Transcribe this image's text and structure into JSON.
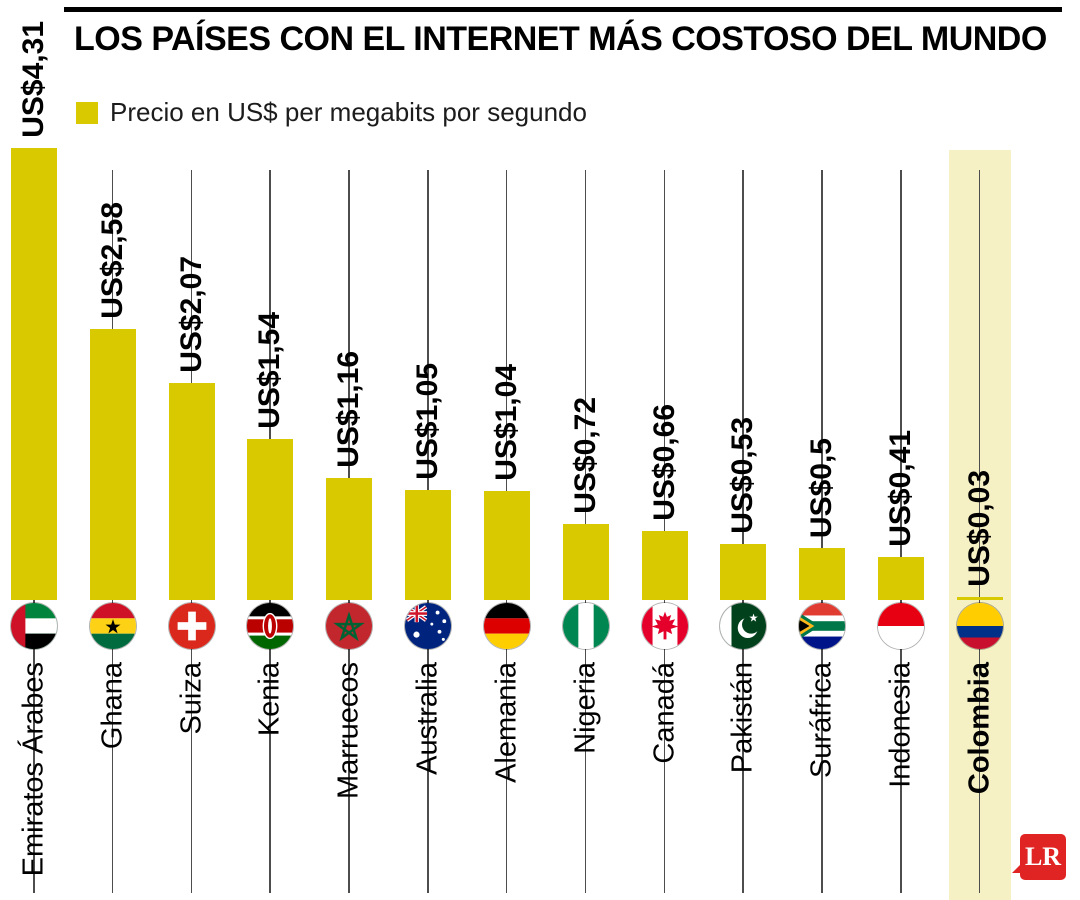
{
  "header": {
    "title": "LOS PAÍSES CON EL INTERNET MÁS COSTOSO DEL MUNDO",
    "legend_label": "Precio en US$ per megabits por segundo"
  },
  "branding": {
    "logo_text": "LR",
    "logo_color": "#e02423"
  },
  "colors": {
    "bar": "#d8c900",
    "highlight_bg": "#f6f1c5",
    "gridline": "#4d4d4d"
  },
  "chart_data": {
    "type": "bar",
    "title": "LOS PAÍSES CON EL INTERNET MÁS COSTOSO DEL MUNDO",
    "legend": "Precio en US$ per megabits por segundo",
    "ylabel": "Precio en US$ per megabits por segundo",
    "xlabel": "",
    "ylim": [
      0,
      4.31
    ],
    "grid": "vertical-column-lines",
    "legend_position": "top-left",
    "categories": [
      "Emiratos Árabes",
      "Ghana",
      "Suiza",
      "Kenia",
      "Marruecos",
      "Australia",
      "Alemania",
      "Nigeria",
      "Canadá",
      "Pakistán",
      "Suráfrica",
      "Indonesia",
      "Colombia"
    ],
    "values": [
      4.31,
      2.58,
      2.07,
      1.54,
      1.16,
      1.05,
      1.04,
      0.72,
      0.66,
      0.53,
      0.5,
      0.41,
      0.03
    ],
    "items": [
      {
        "country": "Emiratos Árabes",
        "value": 4.31,
        "value_label": "US$4,31",
        "flag": "uae-flag-icon",
        "highlight": false
      },
      {
        "country": "Ghana",
        "value": 2.58,
        "value_label": "US$2,58",
        "flag": "ghana-flag-icon",
        "highlight": false
      },
      {
        "country": "Suiza",
        "value": 2.07,
        "value_label": "US$2,07",
        "flag": "switzerland-flag-icon",
        "highlight": false
      },
      {
        "country": "Kenia",
        "value": 1.54,
        "value_label": "US$1,54",
        "flag": "kenya-flag-icon",
        "highlight": false
      },
      {
        "country": "Marruecos",
        "value": 1.16,
        "value_label": "US$1,16",
        "flag": "morocco-flag-icon",
        "highlight": false
      },
      {
        "country": "Australia",
        "value": 1.05,
        "value_label": "US$1,05",
        "flag": "australia-flag-icon",
        "highlight": false
      },
      {
        "country": "Alemania",
        "value": 1.04,
        "value_label": "US$1,04",
        "flag": "germany-flag-icon",
        "highlight": false
      },
      {
        "country": "Nigeria",
        "value": 0.72,
        "value_label": "US$0,72",
        "flag": "nigeria-flag-icon",
        "highlight": false
      },
      {
        "country": "Canadá",
        "value": 0.66,
        "value_label": "US$0,66",
        "flag": "canada-flag-icon",
        "highlight": false
      },
      {
        "country": "Pakistán",
        "value": 0.53,
        "value_label": "US$0,53",
        "flag": "pakistan-flag-icon",
        "highlight": false
      },
      {
        "country": "Suráfrica",
        "value": 0.5,
        "value_label": "US$0,5",
        "flag": "south-africa-flag-icon",
        "highlight": false
      },
      {
        "country": "Indonesia",
        "value": 0.41,
        "value_label": "US$0,41",
        "flag": "indonesia-flag-icon",
        "highlight": false
      },
      {
        "country": "Colombia",
        "value": 0.03,
        "value_label": "US$0,03",
        "flag": "colombia-flag-icon",
        "highlight": true
      }
    ]
  }
}
